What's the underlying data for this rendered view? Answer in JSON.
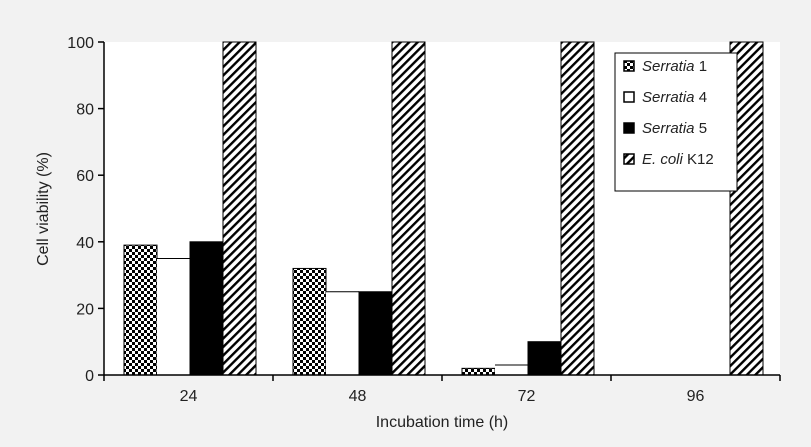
{
  "chart_data": {
    "type": "bar",
    "title": "",
    "xlabel": "Incubation time (h)",
    "ylabel": "Cell viability (%)",
    "ylim": [
      0,
      100
    ],
    "yticks": [
      0,
      20,
      40,
      60,
      80,
      100
    ],
    "categories": [
      "24",
      "48",
      "72",
      "96"
    ],
    "grid": false,
    "legend_position": "top-right",
    "series": [
      {
        "name": "Serratia 1",
        "name_parts": {
          "italic": "Serratia",
          "rest": " 1"
        },
        "fill": "checker",
        "values": [
          39,
          32,
          2,
          0
        ]
      },
      {
        "name": "Serratia 4",
        "name_parts": {
          "italic": "Serratia",
          "rest": " 4"
        },
        "fill": "white",
        "values": [
          35,
          25,
          3,
          0
        ]
      },
      {
        "name": "Serratia 5",
        "name_parts": {
          "italic": "Serratia",
          "rest": " 5"
        },
        "fill": "black",
        "values": [
          40,
          25,
          10,
          0
        ]
      },
      {
        "name": "E. coli K12",
        "name_parts": {
          "italic": "E. coli",
          "rest": " K12"
        },
        "fill": "hatch",
        "values": [
          100,
          100,
          100,
          100
        ]
      }
    ],
    "colors": {
      "background": "#f2f2f2",
      "plot": "#ffffff",
      "axis": "#000000"
    }
  }
}
